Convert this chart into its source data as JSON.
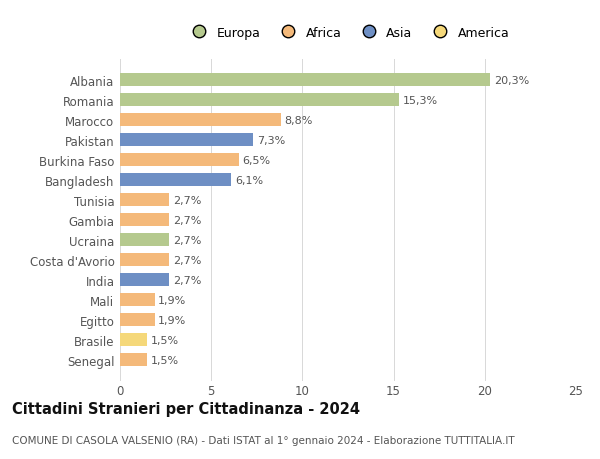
{
  "categories": [
    "Albania",
    "Romania",
    "Marocco",
    "Pakistan",
    "Burkina Faso",
    "Bangladesh",
    "Tunisia",
    "Gambia",
    "Ucraina",
    "Costa d'Avorio",
    "India",
    "Mali",
    "Egitto",
    "Brasile",
    "Senegal"
  ],
  "values": [
    20.3,
    15.3,
    8.8,
    7.3,
    6.5,
    6.1,
    2.7,
    2.7,
    2.7,
    2.7,
    2.7,
    1.9,
    1.9,
    1.5,
    1.5
  ],
  "labels": [
    "20,3%",
    "15,3%",
    "8,8%",
    "7,3%",
    "6,5%",
    "6,1%",
    "2,7%",
    "2,7%",
    "2,7%",
    "2,7%",
    "2,7%",
    "1,9%",
    "1,9%",
    "1,5%",
    "1,5%"
  ],
  "colors": [
    "#b5c98e",
    "#b5c98e",
    "#f4b97a",
    "#6e8fc4",
    "#f4b97a",
    "#6e8fc4",
    "#f4b97a",
    "#f4b97a",
    "#b5c98e",
    "#f4b97a",
    "#6e8fc4",
    "#f4b97a",
    "#f4b97a",
    "#f5d87a",
    "#f4b97a"
  ],
  "continent_colors": {
    "Europa": "#b5c98e",
    "Africa": "#f4b97a",
    "Asia": "#6e8fc4",
    "America": "#f5d87a"
  },
  "xlim": [
    0,
    25
  ],
  "xticks": [
    0,
    5,
    10,
    15,
    20,
    25
  ],
  "title": "Cittadini Stranieri per Cittadinanza - 2024",
  "subtitle": "COMUNE DI CASOLA VALSENIO (RA) - Dati ISTAT al 1° gennaio 2024 - Elaborazione TUTTITALIA.IT",
  "bg_color": "#ffffff",
  "grid_color": "#d8d8d8",
  "bar_height": 0.65,
  "label_fontsize": 8.0,
  "ytick_fontsize": 8.5,
  "xtick_fontsize": 8.5,
  "title_fontsize": 10.5,
  "subtitle_fontsize": 7.5,
  "legend_fontsize": 9.0
}
